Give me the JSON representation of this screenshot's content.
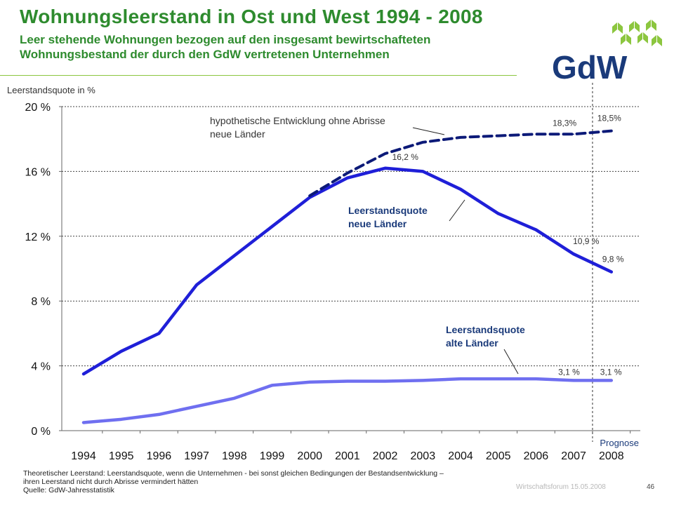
{
  "header": {
    "title": "Wohnungsleerstand in Ost und West 1994 - 2008",
    "subtitle_line1": "Leer stehende Wohnungen bezogen auf den insgesamt bewirtschafteten",
    "subtitle_line2": "Wohnungsbestand der durch den GdW vertretenen Unternehmen"
  },
  "logo": {
    "text": "GdW",
    "text_color": "#1a3a7a",
    "mark_color": "#8cc63f"
  },
  "chart_data": {
    "type": "line",
    "title": "Wohnungsleerstand in Ost und West 1994 - 2008",
    "ylabel": "Leerstandsquote in %",
    "xlabel": "",
    "ylim": [
      0,
      20
    ],
    "yticks": [
      {
        "value": 0,
        "label": "0 %"
      },
      {
        "value": 4,
        "label": "4 %"
      },
      {
        "value": 8,
        "label": "8 %"
      },
      {
        "value": 12,
        "label": "12 %"
      },
      {
        "value": 16,
        "label": "16 %"
      },
      {
        "value": 20,
        "label": "20 %"
      }
    ],
    "categories": [
      "1994",
      "1995",
      "1996",
      "1997",
      "1998",
      "1999",
      "2000",
      "2001",
      "2002",
      "2003",
      "2004",
      "2005",
      "2006",
      "2007",
      "2008"
    ],
    "grid": "horizontal dashed",
    "forecast_marker": {
      "between": [
        "2007",
        "2008"
      ],
      "label": "Prognose"
    },
    "series": [
      {
        "name": "Leerstandsquote neue Länder",
        "label_line1": "Leerstandsquote",
        "label_line2": "neue Länder",
        "color": "#1f1fd8",
        "style": "solid",
        "values": [
          3.5,
          4.9,
          6.0,
          9.0,
          10.8,
          12.6,
          14.4,
          15.6,
          16.2,
          16.0,
          14.9,
          13.4,
          12.4,
          10.9,
          9.8
        ]
      },
      {
        "name": "hypothetische Entwicklung ohne Abrisse neue Länder",
        "label_line1": "hypothetische Entwicklung ohne Abrisse",
        "label_line2": "neue Länder",
        "color": "#0c1a78",
        "style": "dashed",
        "start_index": 6,
        "values": [
          null,
          null,
          null,
          null,
          null,
          null,
          14.5,
          15.9,
          17.1,
          17.8,
          18.1,
          18.2,
          18.3,
          18.3,
          18.5
        ]
      },
      {
        "name": "Leerstandsquote alte Länder",
        "label_line1": "Leerstandsquote",
        "label_line2": "alte Länder",
        "color": "#6f6ff0",
        "style": "solid",
        "values": [
          0.5,
          0.7,
          1.0,
          1.5,
          2.0,
          2.8,
          3.0,
          3.05,
          3.05,
          3.1,
          3.2,
          3.2,
          3.2,
          3.1,
          3.1
        ]
      }
    ],
    "annotations": [
      {
        "text": "16,2 %",
        "series": 0,
        "index": 8
      },
      {
        "text": "10,9 %",
        "series": 0,
        "index": 13
      },
      {
        "text": "9,8 %",
        "series": 0,
        "index": 14
      },
      {
        "text": "18,3%",
        "series": 1,
        "index": 13
      },
      {
        "text": "18,5%",
        "series": 1,
        "index": 14
      },
      {
        "text": "3,1 %",
        "series": 2,
        "index": 13
      },
      {
        "text": "3,1 %",
        "series": 2,
        "index": 14
      }
    ]
  },
  "footnote": {
    "line1": "Theoretischer Leerstand: Leerstandsquote, wenn die Unternehmen - bei sonst gleichen Bedingungen der Bestandsentwicklung –",
    "line2": "ihren Leerstand nicht durch Abrisse vermindert hätten",
    "line3": "Quelle: GdW-Jahresstatistik"
  },
  "footer": {
    "event": "Wirtschaftsforum 15.05.2008",
    "page": "46"
  }
}
